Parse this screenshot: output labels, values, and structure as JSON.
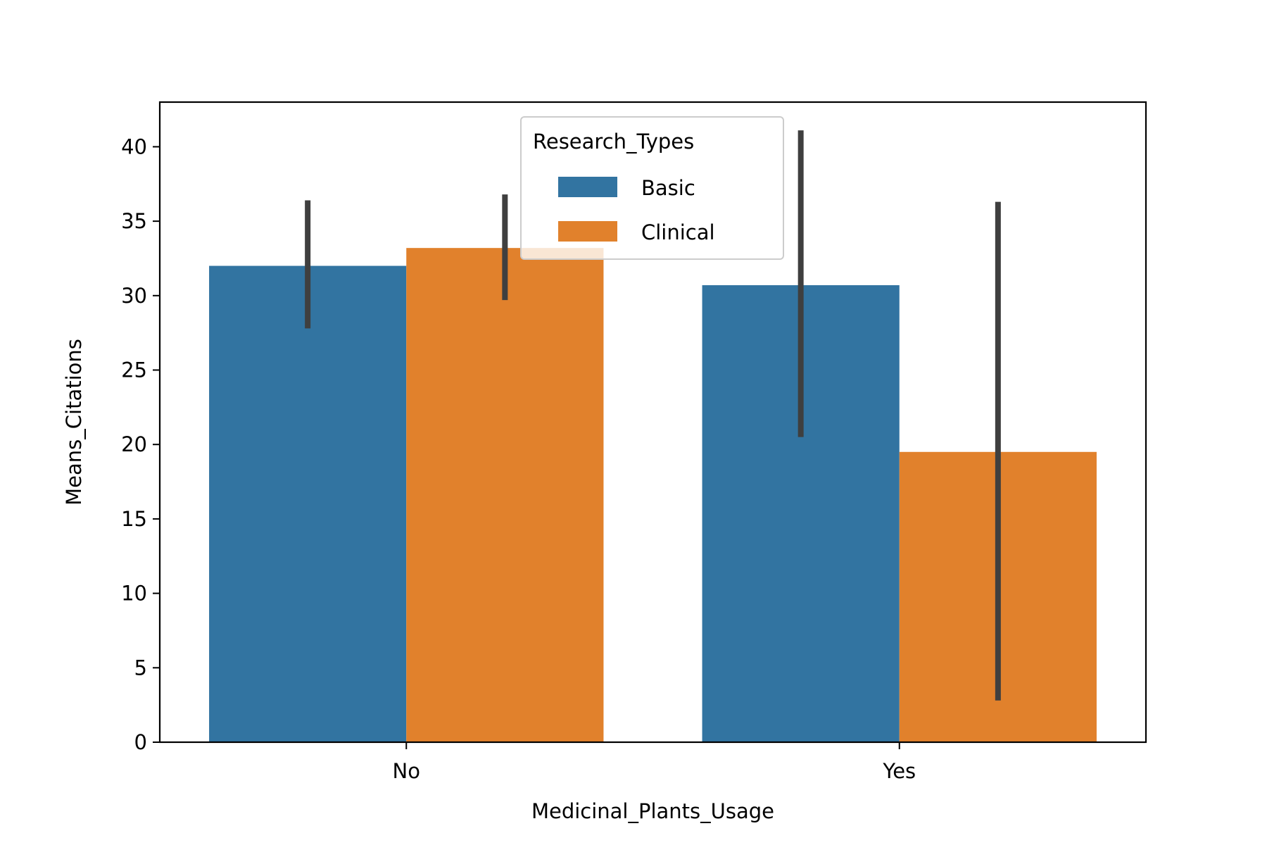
{
  "chart_data": {
    "type": "bar",
    "title": "",
    "xlabel": "Medicinal_Plants_Usage",
    "ylabel": "Means_Citations",
    "categories": [
      "No",
      "Yes"
    ],
    "ylim": [
      0,
      43
    ],
    "yticks": [
      0,
      5,
      10,
      15,
      20,
      25,
      30,
      35,
      40
    ],
    "grid": false,
    "legend": {
      "title": "Research_Types",
      "position": "top-center"
    },
    "series": [
      {
        "name": "Basic",
        "color": "#3274a1",
        "values": [
          32.0,
          30.7
        ],
        "error_low": [
          27.8,
          20.5
        ],
        "error_high": [
          36.4,
          41.1
        ]
      },
      {
        "name": "Clinical",
        "color": "#e1812c",
        "values": [
          33.2,
          19.5
        ],
        "error_low": [
          29.7,
          2.8
        ],
        "error_high": [
          36.8,
          36.3
        ]
      }
    ],
    "error_bar_color": "#3f3f3f"
  }
}
